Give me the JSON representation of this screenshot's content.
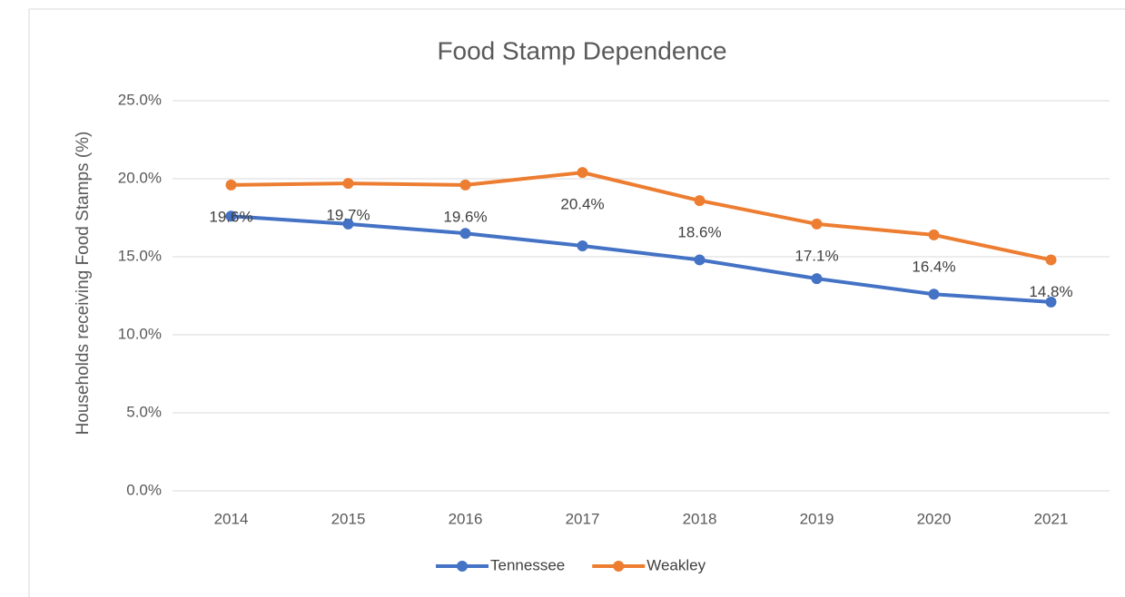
{
  "chart_data": {
    "type": "line",
    "title": "Food Stamp Dependence",
    "y_label": "Households receiving Food Stamps (%)",
    "categories": [
      "2014",
      "2015",
      "2016",
      "2017",
      "2018",
      "2019",
      "2020",
      "2021"
    ],
    "series": [
      {
        "name": "Tennessee",
        "color": "#4472c4",
        "values": [
          17.6,
          17.1,
          16.5,
          15.7,
          14.8,
          13.6,
          12.6,
          12.1
        ]
      },
      {
        "name": "Weakley",
        "color": "#ed7d31",
        "values": [
          19.6,
          19.7,
          19.6,
          20.4,
          18.6,
          17.1,
          16.4,
          14.8
        ],
        "value_labels": [
          "19.6%",
          "19.7%",
          "19.6%",
          "20.4%",
          "18.6%",
          "17.1%",
          "16.4%",
          "14.8%"
        ]
      }
    ],
    "ylim": [
      0,
      25
    ],
    "yticks": [
      {
        "value": 0,
        "label": "0.0%"
      },
      {
        "value": 5,
        "label": "5.0%"
      },
      {
        "value": 10,
        "label": "10.0%"
      },
      {
        "value": 15,
        "label": "15.0%"
      },
      {
        "value": 20,
        "label": "20.0%"
      },
      {
        "value": 25,
        "label": "25.0%"
      }
    ],
    "grid": true,
    "legend": "bottom"
  }
}
